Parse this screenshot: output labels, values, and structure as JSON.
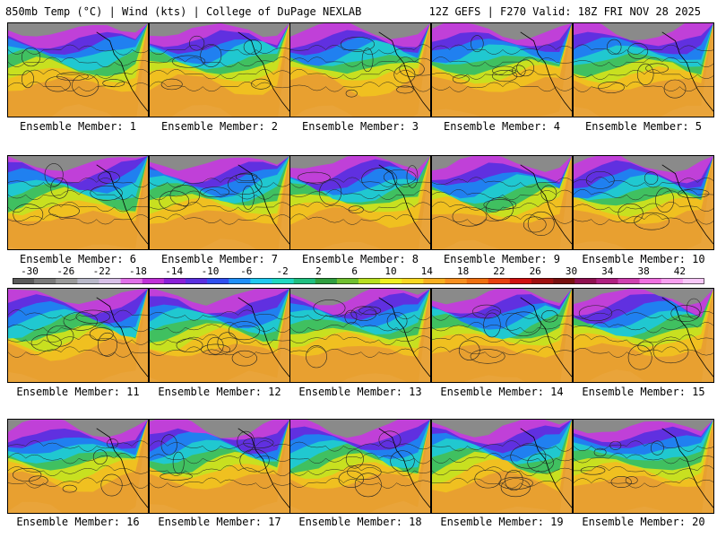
{
  "header": {
    "left": "850mb Temp (°C) | Wind (kts) | College of DuPage NEXLAB",
    "right": "12Z GEFS | F270 Valid: 18Z FRI NOV 28 2025"
  },
  "panels": [
    {
      "label": "Ensemble Member: 1"
    },
    {
      "label": "Ensemble Member: 2"
    },
    {
      "label": "Ensemble Member: 3"
    },
    {
      "label": "Ensemble Member: 4"
    },
    {
      "label": "Ensemble Member: 5"
    },
    {
      "label": "Ensemble Member: 6"
    },
    {
      "label": "Ensemble Member: 7"
    },
    {
      "label": "Ensemble Member: 8"
    },
    {
      "label": "Ensemble Member: 9"
    },
    {
      "label": "Ensemble Member: 10"
    },
    {
      "label": "Ensemble Member: 11"
    },
    {
      "label": "Ensemble Member: 12"
    },
    {
      "label": "Ensemble Member: 13"
    },
    {
      "label": "Ensemble Member: 14"
    },
    {
      "label": "Ensemble Member: 15"
    },
    {
      "label": "Ensemble Member: 16"
    },
    {
      "label": "Ensemble Member: 17"
    },
    {
      "label": "Ensemble Member: 18"
    },
    {
      "label": "Ensemble Member: 19"
    },
    {
      "label": "Ensemble Member: 20"
    }
  ],
  "colorbar": {
    "tick_labels": [
      "-30",
      "-26",
      "-22",
      "-18",
      "-14",
      "-10",
      "-6",
      "-2",
      "2",
      "6",
      "10",
      "14",
      "18",
      "22",
      "26",
      "30",
      "34",
      "38",
      "42"
    ],
    "colors": [
      "#5a5a5a",
      "#7a7a7a",
      "#9a9a9a",
      "#b8b8c8",
      "#d8c0e8",
      "#e070e8",
      "#c030d8",
      "#8a20d8",
      "#5a30e0",
      "#3050f0",
      "#2090f8",
      "#20c8f0",
      "#20d8c0",
      "#20c080",
      "#30a040",
      "#70c030",
      "#b8e020",
      "#f0f020",
      "#f8d820",
      "#f8b020",
      "#f89020",
      "#f07010",
      "#e84010",
      "#d01010",
      "#a01010",
      "#781010",
      "#901050",
      "#b02080",
      "#d040b0",
      "#f070e0",
      "#f8a0f0",
      "#f8c8f8"
    ]
  }
}
